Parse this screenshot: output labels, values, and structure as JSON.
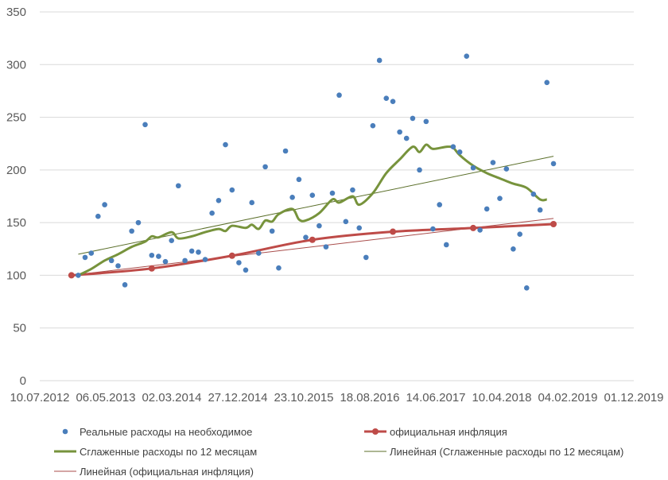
{
  "chart_data": {
    "type": "scatter",
    "title": "",
    "xlabel": "",
    "ylabel": "",
    "ylim": [
      0,
      350
    ],
    "y_ticks": [
      0,
      50,
      100,
      150,
      200,
      250,
      300,
      350
    ],
    "xlim": [
      "2012-07-10",
      "2019-12-01"
    ],
    "x_ticks": [
      "2012-07-10",
      "2013-05-06",
      "2014-03-02",
      "2014-12-27",
      "2015-10-23",
      "2016-08-18",
      "2017-06-14",
      "2018-04-10",
      "2019-02-04",
      "2019-12-01"
    ],
    "x_tick_labels": [
      "10.07.2012",
      "06.05.2013",
      "02.03.2014",
      "27.12.2014",
      "23.10.2015",
      "18.08.2016",
      "14.06.2017",
      "10.04.2018",
      "04.02.2019",
      "01.12.2019"
    ],
    "grid": "horizontal",
    "legend_position": "bottom",
    "series": [
      {
        "name": "Реальные расходы на необходимое",
        "kind": "markers",
        "color": "#4a7ebb",
        "points": [
          [
            "2013-01-01",
            100
          ],
          [
            "2013-02-01",
            117
          ],
          [
            "2013-03-01",
            121
          ],
          [
            "2013-04-01",
            156
          ],
          [
            "2013-05-01",
            167
          ],
          [
            "2013-06-01",
            114
          ],
          [
            "2013-07-01",
            109
          ],
          [
            "2013-08-01",
            91
          ],
          [
            "2013-09-01",
            142
          ],
          [
            "2013-10-01",
            150
          ],
          [
            "2013-11-01",
            243
          ],
          [
            "2013-12-01",
            119
          ],
          [
            "2014-01-01",
            118
          ],
          [
            "2014-02-01",
            113
          ],
          [
            "2014-03-01",
            133
          ],
          [
            "2014-04-01",
            185
          ],
          [
            "2014-05-01",
            114
          ],
          [
            "2014-06-01",
            123
          ],
          [
            "2014-07-01",
            122
          ],
          [
            "2014-08-01",
            115
          ],
          [
            "2014-09-01",
            159
          ],
          [
            "2014-10-01",
            171
          ],
          [
            "2014-11-01",
            224
          ],
          [
            "2014-12-01",
            181
          ],
          [
            "2015-01-01",
            112
          ],
          [
            "2015-02-01",
            105
          ],
          [
            "2015-03-01",
            169
          ],
          [
            "2015-04-01",
            121
          ],
          [
            "2015-05-01",
            203
          ],
          [
            "2015-06-01",
            142
          ],
          [
            "2015-07-01",
            107
          ],
          [
            "2015-08-01",
            218
          ],
          [
            "2015-09-01",
            174
          ],
          [
            "2015-10-01",
            191
          ],
          [
            "2015-11-01",
            136
          ],
          [
            "2015-12-01",
            176
          ],
          [
            "2016-01-01",
            147
          ],
          [
            "2016-02-01",
            127
          ],
          [
            "2016-03-01",
            178
          ],
          [
            "2016-04-01",
            271
          ],
          [
            "2016-05-01",
            151
          ],
          [
            "2016-06-01",
            181
          ],
          [
            "2016-07-01",
            145
          ],
          [
            "2016-08-01",
            117
          ],
          [
            "2016-09-01",
            242
          ],
          [
            "2016-10-01",
            304
          ],
          [
            "2016-11-01",
            268
          ],
          [
            "2016-12-01",
            265
          ],
          [
            "2017-01-01",
            236
          ],
          [
            "2017-02-01",
            230
          ],
          [
            "2017-03-01",
            249
          ],
          [
            "2017-04-01",
            200
          ],
          [
            "2017-05-01",
            246
          ],
          [
            "2017-06-01",
            144
          ],
          [
            "2017-07-01",
            167
          ],
          [
            "2017-08-01",
            129
          ],
          [
            "2017-09-01",
            222
          ],
          [
            "2017-10-01",
            217
          ],
          [
            "2017-11-01",
            308
          ],
          [
            "2017-12-01",
            202
          ],
          [
            "2018-01-01",
            143
          ],
          [
            "2018-02-01",
            163
          ],
          [
            "2018-03-01",
            207
          ],
          [
            "2018-04-01",
            173
          ],
          [
            "2018-05-01",
            201
          ],
          [
            "2018-06-01",
            125
          ],
          [
            "2018-07-01",
            139
          ],
          [
            "2018-08-01",
            88
          ],
          [
            "2018-09-01",
            177
          ],
          [
            "2018-10-01",
            162
          ],
          [
            "2018-11-01",
            283
          ],
          [
            "2018-12-01",
            206
          ]
        ]
      },
      {
        "name": "официальная инфляция",
        "kind": "line-markers",
        "color": "#be4b48",
        "points": [
          [
            "2012-12-01",
            100
          ],
          [
            "2013-12-01",
            106.5
          ],
          [
            "2014-12-01",
            118.6
          ],
          [
            "2015-12-01",
            133.7
          ],
          [
            "2016-12-01",
            141.4
          ],
          [
            "2017-12-01",
            144.9
          ],
          [
            "2018-12-01",
            148.6
          ]
        ]
      },
      {
        "name": "Сглаженные расходы по 12 месяцам",
        "kind": "line",
        "color": "#77933c",
        "points": [
          [
            "2013-01-01",
            100
          ],
          [
            "2013-03-01",
            106
          ],
          [
            "2013-05-01",
            114
          ],
          [
            "2013-07-01",
            120
          ],
          [
            "2013-09-01",
            127
          ],
          [
            "2013-11-01",
            132
          ],
          [
            "2013-12-01",
            137
          ],
          [
            "2014-01-01",
            136
          ],
          [
            "2014-03-01",
            141
          ],
          [
            "2014-04-01",
            135
          ],
          [
            "2014-06-01",
            137
          ],
          [
            "2014-08-01",
            141
          ],
          [
            "2014-10-01",
            144
          ],
          [
            "2014-11-01",
            142
          ],
          [
            "2014-12-01",
            147
          ],
          [
            "2015-02-01",
            145
          ],
          [
            "2015-03-01",
            148
          ],
          [
            "2015-04-01",
            144
          ],
          [
            "2015-05-01",
            152
          ],
          [
            "2015-06-01",
            151
          ],
          [
            "2015-07-01",
            158
          ],
          [
            "2015-09-01",
            163
          ],
          [
            "2015-10-01",
            153
          ],
          [
            "2015-11-01",
            152
          ],
          [
            "2016-01-01",
            159
          ],
          [
            "2016-03-01",
            172
          ],
          [
            "2016-04-01",
            169
          ],
          [
            "2016-06-01",
            175
          ],
          [
            "2016-07-01",
            167
          ],
          [
            "2016-09-01",
            178
          ],
          [
            "2016-11-01",
            197
          ],
          [
            "2017-01-01",
            210
          ],
          [
            "2017-03-01",
            222
          ],
          [
            "2017-04-01",
            217
          ],
          [
            "2017-05-01",
            224
          ],
          [
            "2017-06-01",
            220
          ],
          [
            "2017-08-01",
            222
          ],
          [
            "2017-09-01",
            221
          ],
          [
            "2017-10-01",
            214
          ],
          [
            "2017-12-01",
            204
          ],
          [
            "2018-02-01",
            197
          ],
          [
            "2018-04-01",
            192
          ],
          [
            "2018-06-01",
            187
          ],
          [
            "2018-08-01",
            183
          ],
          [
            "2018-10-01",
            172
          ],
          [
            "2018-11-01",
            172
          ]
        ]
      },
      {
        "name": "Линейная (Сглаженные расходы по 12 месяцам)",
        "kind": "trend",
        "color": "#5b6f2a",
        "points": [
          [
            "2013-01-01",
            120
          ],
          [
            "2018-12-01",
            213
          ]
        ]
      },
      {
        "name": "Линейная (официальная инфляция)",
        "kind": "trend",
        "color": "#a94d4b",
        "points": [
          [
            "2012-12-01",
            100
          ],
          [
            "2018-12-01",
            154
          ]
        ]
      }
    ]
  }
}
